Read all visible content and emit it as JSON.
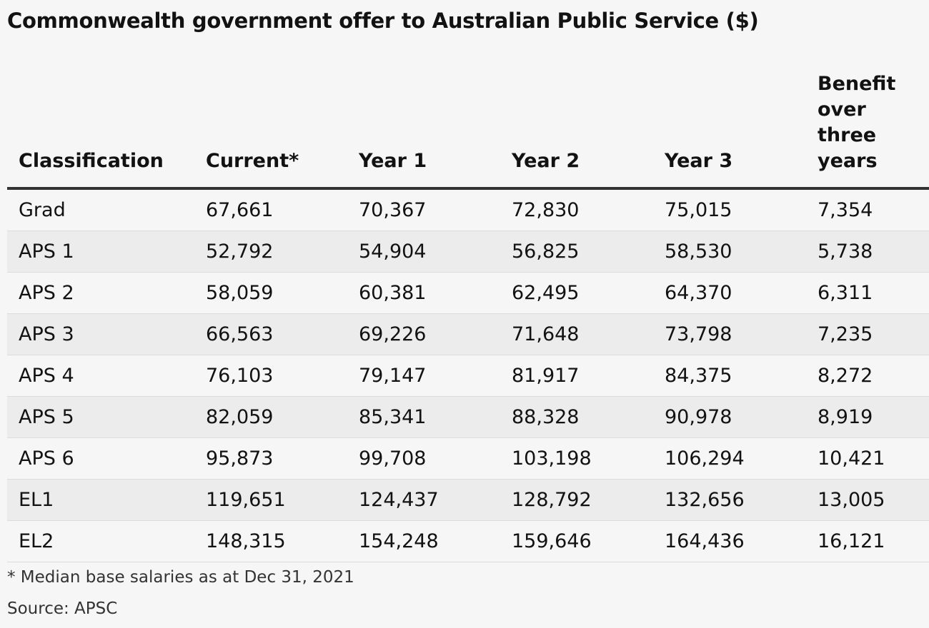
{
  "chart_data": {
    "type": "table",
    "title": "Commonwealth government offer to Australian Public Service ($)",
    "columns": [
      "Classification",
      "Current*",
      "Year 1",
      "Year 2",
      "Year 3",
      "Benefit over three years"
    ],
    "rows": [
      [
        "Grad",
        "67,661",
        "70,367",
        "72,830",
        "75,015",
        "7,354"
      ],
      [
        "APS 1",
        "52,792",
        "54,904",
        "56,825",
        "58,530",
        "5,738"
      ],
      [
        "APS 2",
        "58,059",
        "60,381",
        "62,495",
        "64,370",
        "6,311"
      ],
      [
        "APS 3",
        "66,563",
        "69,226",
        "71,648",
        "73,798",
        "7,235"
      ],
      [
        "APS 4",
        "76,103",
        "79,147",
        "81,917",
        "84,375",
        "8,272"
      ],
      [
        "APS 5",
        "82,059",
        "85,341",
        "88,328",
        "90,978",
        "8,919"
      ],
      [
        "APS 6",
        "95,873",
        "99,708",
        "103,198",
        "106,294",
        "10,421"
      ],
      [
        "EL1",
        "119,651",
        "124,437",
        "128,792",
        "132,656",
        "13,005"
      ],
      [
        "EL2",
        "148,315",
        "154,248",
        "159,646",
        "164,436",
        "16,121"
      ]
    ],
    "footnote": "* Median base salaries as at Dec 31, 2021",
    "source": "Source: APSC"
  }
}
